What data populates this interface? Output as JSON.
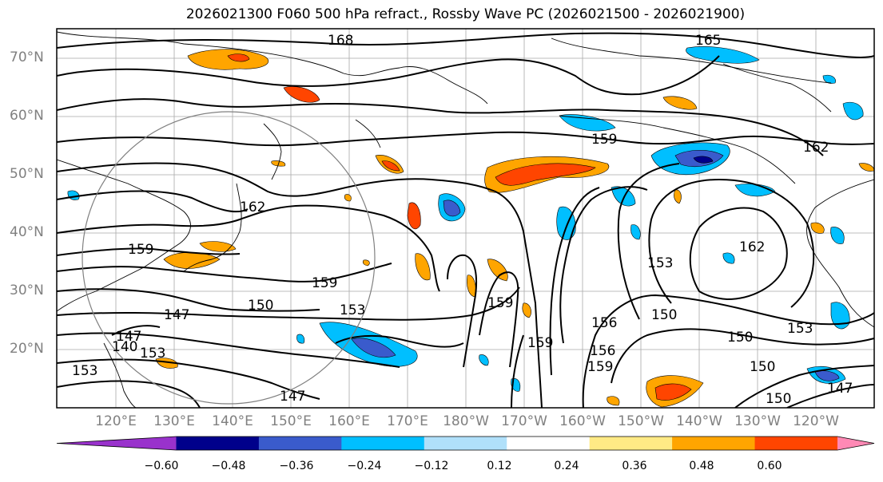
{
  "title": "2026021300 F060 500 hPa refract., Rossby Wave PC (2026021500 - 2026021900)",
  "lat_labels": [
    "70°N",
    "60°N",
    "50°N",
    "40°N",
    "30°N",
    "20°N"
  ],
  "lon_labels": [
    "120°E",
    "130°E",
    "140°E",
    "150°E",
    "160°E",
    "170°E",
    "180°W",
    "170°W",
    "160°W",
    "150°W",
    "140°W",
    "130°W",
    "120°W"
  ],
  "contour_labels": [
    "168",
    "165",
    "159",
    "162",
    "162",
    "159",
    "159",
    "159",
    "150",
    "153",
    "147",
    "153",
    "159",
    "153",
    "156",
    "150",
    "150",
    "156",
    "159",
    "162",
    "153",
    "150",
    "150",
    "147",
    "147",
    "140",
    "153",
    "147"
  ],
  "colorbar": {
    "ticks": [
      "−0.60",
      "−0.48",
      "−0.36",
      "−0.24",
      "−0.12",
      "0.12",
      "0.24",
      "0.36",
      "0.48",
      "0.60"
    ],
    "colors": [
      "#9932cc",
      "#00008b",
      "#3a5bcc",
      "#00bfff",
      "#b0e0fa",
      "#ffffff",
      "#ffea85",
      "#ffa500",
      "#ff4500",
      "#b22222",
      "#ff89b5"
    ]
  },
  "legend_colors": {
    "neg_strong": "#3a5bcc",
    "neg_mid": "#00bfff",
    "neg_weak": "#b0e0fa",
    "pos_weak": "#ffea85",
    "pos_mid": "#ffa500",
    "pos_strong": "#ff4500",
    "pos_max": "#b22222"
  }
}
